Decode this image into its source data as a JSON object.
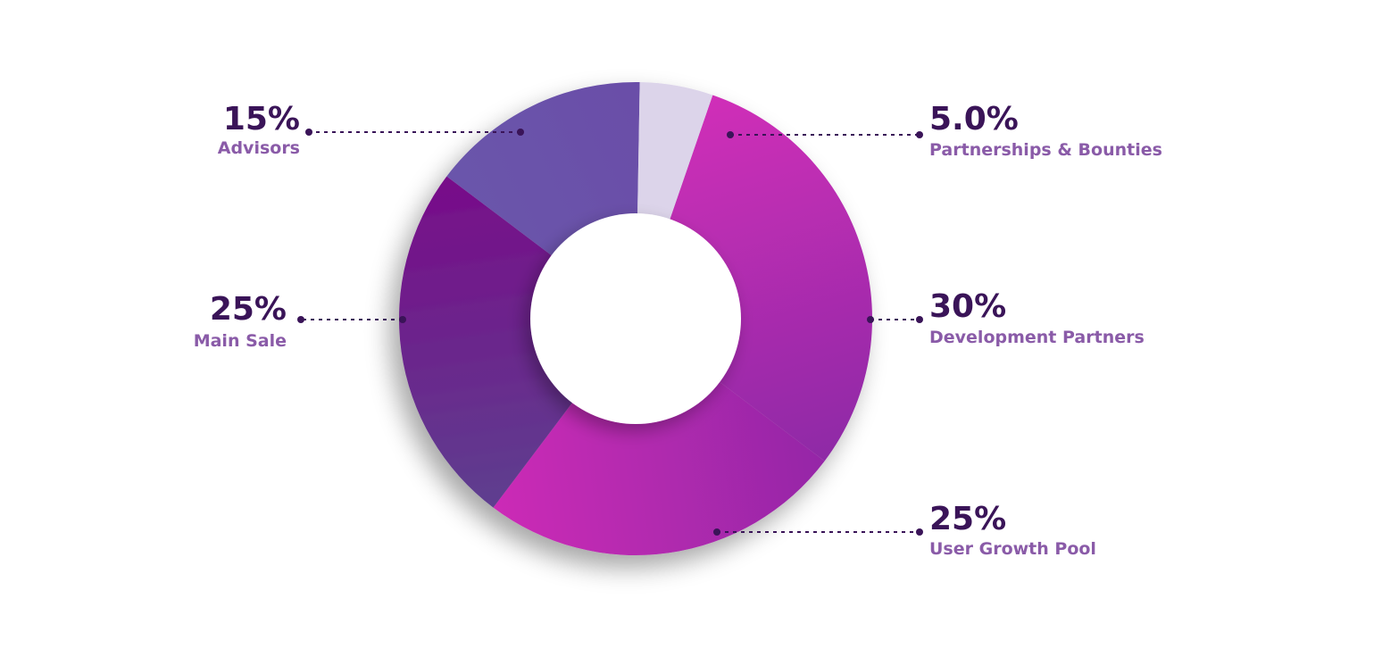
{
  "chart_data": {
    "type": "pie",
    "donut": true,
    "start_angle_deg": 19,
    "slices": [
      {
        "label": "Development Partners",
        "value": 30,
        "value_label": "30%",
        "color_start": "#d02fb8",
        "color_end": "#8e2aa6"
      },
      {
        "label": "User Growth Pool",
        "value": 25,
        "value_label": "25%",
        "color_start": "#9527a7",
        "color_end": "#cc2cb6"
      },
      {
        "label": "Main Sale",
        "value": 25,
        "value_label": "25%",
        "color_start": "#5e3f8f",
        "color_end": "#780c89"
      },
      {
        "label": "Advisors",
        "value": 15,
        "value_label": "15%",
        "color_start": "#6b55ab",
        "color_end": "#6a4ea8"
      },
      {
        "label": "Partnerships & Bounties",
        "value": 5,
        "value_label": "5.0%",
        "color_start": "#dcd4ea",
        "color_end": "#dcd4ea"
      }
    ]
  },
  "colors": {
    "percent_text": "#3a1458",
    "label_text": "#8a5ba8",
    "leader_line": "#3a1458",
    "background": "#ffffff"
  }
}
